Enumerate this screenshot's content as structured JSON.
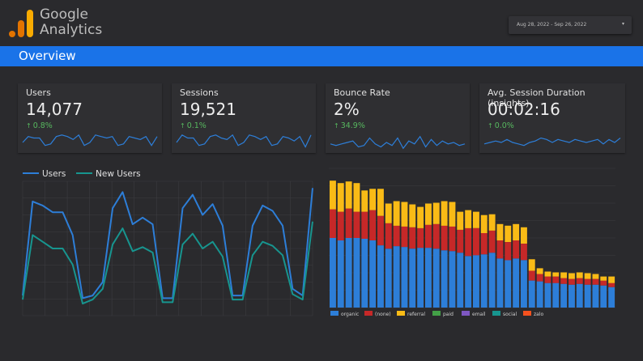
{
  "header": {
    "brand_line1": "Google",
    "brand_line2": "Analytics",
    "date_range": "Aug 28, 2022 - Sep 26, 2022",
    "caret": "▾"
  },
  "overview": {
    "title": "Overview"
  },
  "colors": {
    "accent": "#1a73e8",
    "users": "#2d7ed8",
    "new_users": "#17958f",
    "positive": "#57b85f",
    "logo_orange": "#f9ab00",
    "logo_dark_orange": "#e37400"
  },
  "kpis": [
    {
      "label": "Users",
      "value": "14,077",
      "delta": "0.8%",
      "arrow": "↑",
      "spark": [
        6,
        10,
        9,
        9,
        4,
        5,
        10,
        11,
        10,
        8,
        11,
        4,
        6,
        11,
        10,
        9,
        10,
        4,
        5,
        10,
        9,
        8,
        10,
        4,
        10
      ]
    },
    {
      "label": "Sessions",
      "value": "19,521",
      "delta": "0.1%",
      "arrow": "↑",
      "spark": [
        6,
        11,
        9,
        9,
        4,
        5,
        10,
        11,
        9,
        8,
        11,
        4,
        6,
        11,
        10,
        8,
        10,
        4,
        5,
        10,
        9,
        7,
        10,
        3,
        11
      ]
    },
    {
      "label": "Bounce Rate",
      "value": "2%",
      "delta": "34.9%",
      "arrow": "↑",
      "spark": [
        5,
        4,
        5,
        6,
        7,
        3,
        4,
        9,
        5,
        3,
        6,
        4,
        9,
        2,
        7,
        5,
        10,
        3,
        8,
        4,
        7,
        5,
        6,
        4,
        5
      ]
    },
    {
      "label": "Avg. Session Duration (insights)",
      "value": "00:02:16",
      "delta": "0.0%",
      "arrow": "↑",
      "spark": [
        5,
        6,
        7,
        6,
        8,
        6,
        5,
        4,
        6,
        7,
        9,
        8,
        6,
        8,
        7,
        6,
        8,
        7,
        6,
        7,
        8,
        5,
        8,
        6,
        9
      ]
    }
  ],
  "chart_data": [
    {
      "type": "line",
      "legend_position": "top-left",
      "grid": true,
      "ylim": [
        0,
        100
      ],
      "series": [
        {
          "name": "Users",
          "color": "#2d7ed8",
          "values": [
            15,
            85,
            82,
            77,
            77,
            60,
            13,
            15,
            25,
            80,
            92,
            68,
            73,
            68,
            13,
            13,
            80,
            90,
            75,
            83,
            67,
            15,
            15,
            67,
            82,
            78,
            67,
            20,
            15,
            95
          ]
        },
        {
          "name": "New Users",
          "color": "#17958f",
          "values": [
            12,
            60,
            55,
            50,
            50,
            38,
            9,
            12,
            20,
            53,
            65,
            48,
            51,
            47,
            10,
            10,
            53,
            61,
            50,
            55,
            44,
            12,
            12,
            45,
            55,
            52,
            45,
            16,
            12,
            70
          ]
        }
      ]
    },
    {
      "type": "bar",
      "stacked": true,
      "grid": true,
      "ylim": [
        0,
        170
      ],
      "legend_position": "bottom",
      "series": [
        {
          "name": "organic",
          "color": "#2d7ed8",
          "values": [
            85,
            82,
            85,
            85,
            84,
            82,
            76,
            72,
            75,
            74,
            72,
            73,
            73,
            72,
            70,
            69,
            67,
            63,
            64,
            65,
            67,
            60,
            58,
            60,
            58,
            33,
            32,
            30,
            30,
            29,
            28,
            29,
            28,
            28,
            27,
            25
          ]
        },
        {
          "name": "(none)",
          "color": "#c62828",
          "values": [
            35,
            35,
            36,
            32,
            33,
            37,
            36,
            31,
            25,
            25,
            26,
            24,
            28,
            30,
            30,
            30,
            28,
            34,
            33,
            26,
            27,
            22,
            22,
            22,
            20,
            12,
            9,
            8,
            8,
            7,
            7,
            7,
            7,
            7,
            6,
            5
          ]
        },
        {
          "name": "referral",
          "color": "#f9bb16",
          "values": [
            35,
            35,
            33,
            35,
            26,
            26,
            33,
            24,
            30,
            30,
            28,
            26,
            26,
            26,
            30,
            30,
            22,
            22,
            20,
            22,
            20,
            20,
            20,
            20,
            20,
            14,
            7,
            6,
            5,
            7,
            7,
            7,
            7,
            6,
            5,
            8
          ]
        },
        {
          "name": "paid",
          "color": "#43a047",
          "values": [
            0,
            0,
            0,
            0,
            0,
            0,
            0,
            0,
            0,
            0,
            0,
            0,
            0,
            0,
            0,
            0,
            0,
            0,
            0,
            0,
            0,
            0,
            0,
            0,
            0,
            0,
            0,
            0,
            0,
            0,
            0,
            0,
            0,
            0,
            0,
            0
          ]
        },
        {
          "name": "email",
          "color": "#7e57c2",
          "values": [
            0,
            0,
            0,
            0,
            0,
            0,
            0,
            0,
            0,
            0,
            0,
            0,
            0,
            0,
            0,
            0,
            0,
            0,
            0,
            0,
            0,
            0,
            0,
            0,
            0,
            0,
            0,
            0,
            0,
            0,
            0,
            0,
            0,
            0,
            0,
            0
          ]
        },
        {
          "name": "social",
          "color": "#17958f",
          "values": [
            0,
            0,
            0,
            0,
            0,
            0,
            0,
            0,
            0,
            0,
            0,
            0,
            0,
            0,
            0,
            0,
            0,
            0,
            0,
            0,
            0,
            0,
            0,
            0,
            0,
            0,
            0,
            0,
            0,
            0,
            0,
            0,
            0,
            0,
            0,
            0
          ]
        },
        {
          "name": "zalo",
          "color": "#f4511e",
          "values": [
            0,
            0,
            0,
            0,
            0,
            0,
            0,
            0,
            0,
            0,
            0,
            0,
            0,
            0,
            0,
            0,
            0,
            0,
            0,
            0,
            0,
            0,
            0,
            0,
            0,
            0,
            0,
            0,
            0,
            0,
            0,
            0,
            0,
            0,
            0,
            0
          ]
        }
      ]
    }
  ]
}
